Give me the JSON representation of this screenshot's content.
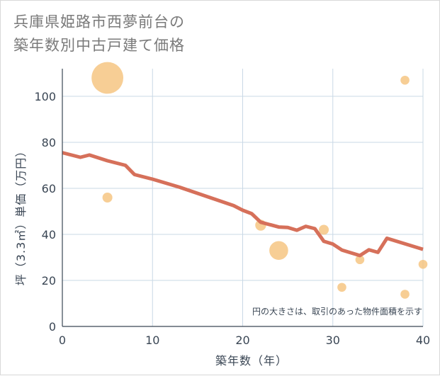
{
  "chart_data": {
    "type": "scatter+line",
    "title": [
      "兵庫県姫路市西夢前台の",
      "築年数別中古戸建て価格"
    ],
    "xlabel": "築年数（年）",
    "ylabel": "坪（3.3㎡）単価（万円）",
    "xlim": [
      0,
      40
    ],
    "ylim": [
      0,
      112
    ],
    "xticks": [
      0,
      10,
      20,
      30,
      40
    ],
    "yticks": [
      0,
      20,
      40,
      60,
      80,
      100
    ],
    "grid": true,
    "note": "円の大きさは、取引のあった物件面積を示す",
    "colors": {
      "line": "#d6705a",
      "bubble": "#f5c27a",
      "grid": "#c9d8e6",
      "axis": "#3a4654"
    },
    "trend_line": {
      "x": [
        0,
        2,
        3,
        5,
        7,
        8,
        10,
        13,
        16,
        19,
        20,
        21,
        22,
        24,
        25,
        26,
        27,
        28,
        29,
        30,
        31,
        33,
        34,
        35,
        36,
        40
      ],
      "y": [
        75.5,
        73.5,
        74.5,
        72,
        70,
        66,
        64,
        60.5,
        56.5,
        52.5,
        50.5,
        49,
        45.3,
        43.2,
        43,
        41.8,
        43.5,
        42.5,
        37,
        35.8,
        33.2,
        30.8,
        33.3,
        32.2,
        38.3,
        33.5
      ]
    },
    "bubbles": [
      {
        "x": 5,
        "y": 108,
        "size": 3.2
      },
      {
        "x": 5,
        "y": 56,
        "size": 1
      },
      {
        "x": 22,
        "y": 44,
        "size": 1.1
      },
      {
        "x": 24,
        "y": 33,
        "size": 1.9
      },
      {
        "x": 29,
        "y": 42,
        "size": 1
      },
      {
        "x": 31,
        "y": 17,
        "size": 0.9
      },
      {
        "x": 33,
        "y": 29,
        "size": 0.9
      },
      {
        "x": 38,
        "y": 107,
        "size": 0.9
      },
      {
        "x": 38,
        "y": 14,
        "size": 0.9
      },
      {
        "x": 40,
        "y": 27,
        "size": 0.9
      }
    ]
  }
}
